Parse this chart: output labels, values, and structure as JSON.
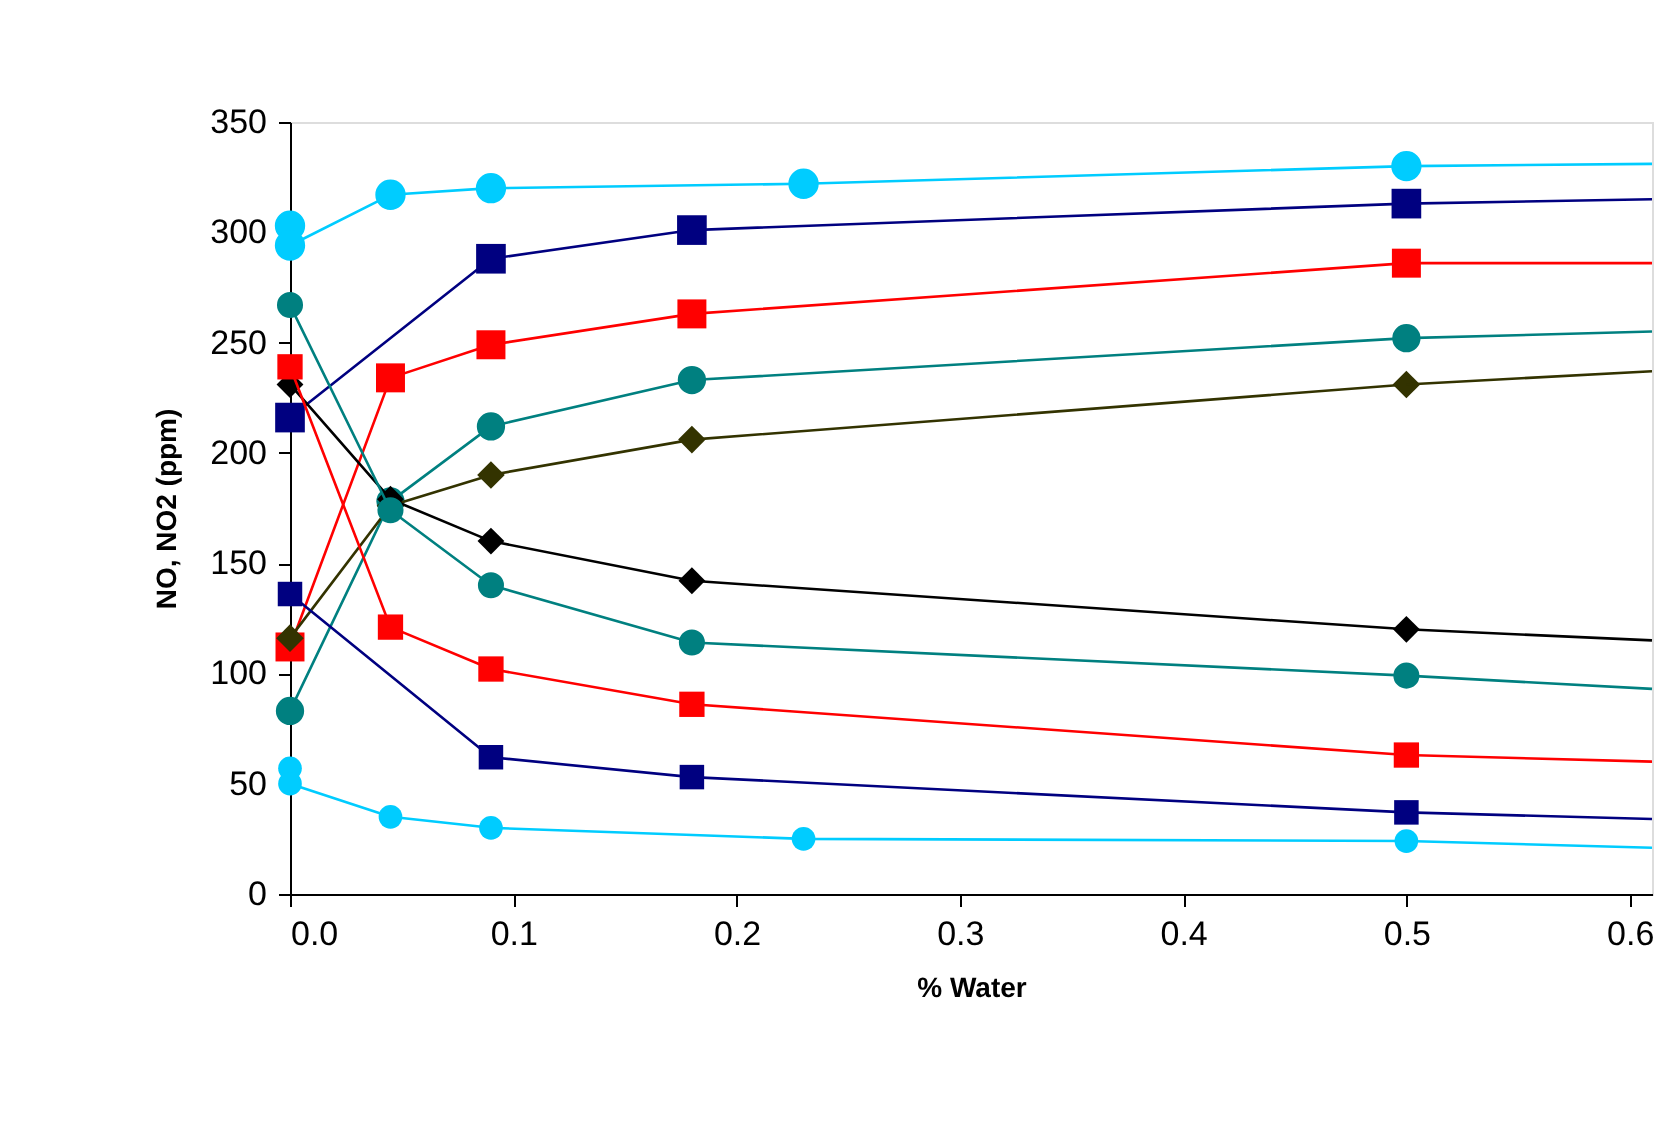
{
  "chart_data": {
    "type": "line",
    "xlabel": "% Water",
    "ylabel": "NO, NO2 (ppm)",
    "xlim": [
      0,
      0.61
    ],
    "ylim": [
      0,
      350
    ],
    "xticks": [
      {
        "value": 0,
        "label": "0.0"
      },
      0.1,
      0.2,
      0.3,
      0.4,
      0.5,
      0.6
    ],
    "yticks": [
      0,
      50,
      100,
      150,
      200,
      250,
      300,
      350
    ],
    "grid": false,
    "series": [
      {
        "color": "#00ccff",
        "marker": "circle",
        "x": [
          0,
          0,
          0.045,
          0.09,
          0.23,
          0.5
        ],
        "values": [
          303,
          294,
          317,
          320,
          322,
          330
        ]
      },
      {
        "color": "#000080",
        "marker": "square",
        "x": [
          0,
          0.09,
          0.18,
          0.5
        ],
        "values": [
          216,
          288,
          301,
          313
        ]
      },
      {
        "color": "#ff0000",
        "marker": "square",
        "x": [
          0,
          0.045,
          0.09,
          0.18,
          0.5
        ],
        "values": [
          112,
          234,
          249,
          263,
          286
        ]
      },
      {
        "color": "#008080",
        "marker": "circle",
        "x": [
          0,
          0.045,
          0.09,
          0.18,
          0.5
        ],
        "values": [
          83,
          178,
          212,
          233,
          252
        ]
      },
      {
        "color": "#333300",
        "marker": "diamond",
        "x": [
          0,
          0.045,
          0.09,
          0.18,
          0.5
        ],
        "values": [
          116,
          176,
          190,
          206,
          231
        ]
      },
      {
        "color": "#000000",
        "marker": "diamond",
        "x": [
          0,
          0.045,
          0.09,
          0.18,
          0.5
        ],
        "values": [
          231,
          179,
          160,
          142,
          120
        ]
      },
      {
        "color": "#008080",
        "marker": "circle",
        "x": [
          0,
          0.045,
          0.09,
          0.18,
          0.5
        ],
        "values": [
          267,
          174,
          140,
          114,
          99
        ]
      },
      {
        "color": "#ff0000",
        "marker": "square",
        "x": [
          0,
          0.045,
          0.09,
          0.18,
          0.5
        ],
        "values": [
          239,
          121,
          102,
          86,
          63
        ]
      },
      {
        "color": "#000080",
        "marker": "square",
        "x": [
          0,
          0.09,
          0.18,
          0.5
        ],
        "values": [
          136,
          62,
          53,
          37
        ]
      },
      {
        "color": "#00ccff",
        "marker": "circle",
        "x": [
          0,
          0,
          0.045,
          0.09,
          0.23,
          0.5
        ],
        "values": [
          57,
          50,
          35,
          30,
          25,
          24
        ]
      },
      {
        "color": "#00ccff",
        "marker": "none",
        "x": [
          0.5,
          0.61
        ],
        "values": [
          330,
          331
        ]
      },
      {
        "color": "#000080",
        "marker": "none",
        "x": [
          0.5,
          0.61
        ],
        "values": [
          313,
          315
        ]
      },
      {
        "color": "#ff0000",
        "marker": "none",
        "x": [
          0.5,
          0.61
        ],
        "values": [
          286,
          286
        ]
      },
      {
        "color": "#008080",
        "marker": "none",
        "x": [
          0.5,
          0.61
        ],
        "values": [
          252,
          255
        ]
      },
      {
        "color": "#333300",
        "marker": "none",
        "x": [
          0.5,
          0.61
        ],
        "values": [
          231,
          237
        ]
      },
      {
        "color": "#000000",
        "marker": "none",
        "x": [
          0.5,
          0.61
        ],
        "values": [
          120,
          115
        ]
      },
      {
        "color": "#008080",
        "marker": "none",
        "x": [
          0.5,
          0.61
        ],
        "values": [
          99,
          93
        ]
      },
      {
        "color": "#ff0000",
        "marker": "none",
        "x": [
          0.5,
          0.61
        ],
        "values": [
          63,
          60
        ]
      },
      {
        "color": "#000080",
        "marker": "none",
        "x": [
          0.5,
          0.61
        ],
        "values": [
          37,
          34
        ]
      },
      {
        "color": "#00ccff",
        "marker": "none",
        "x": [
          0.5,
          0.61
        ],
        "values": [
          24,
          21
        ]
      }
    ]
  }
}
